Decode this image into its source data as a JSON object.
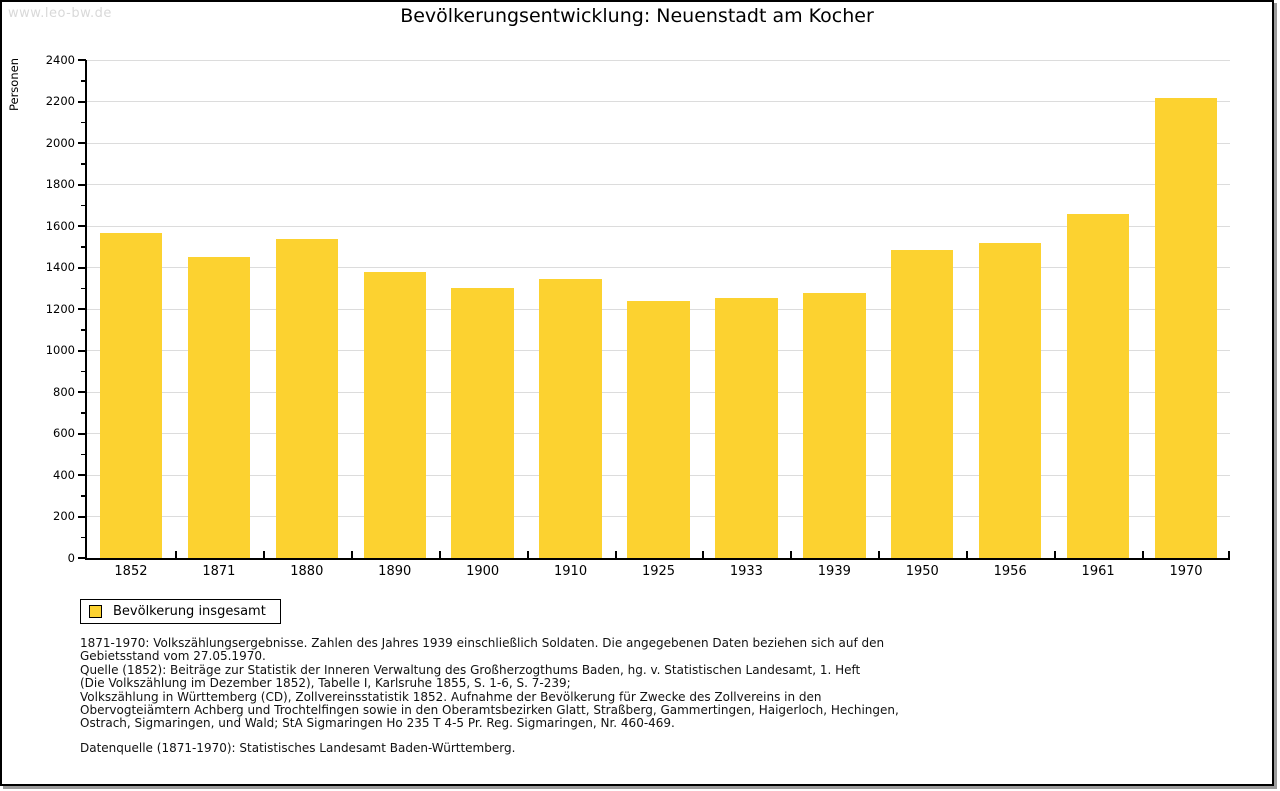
{
  "watermark": "www.leo-bw.de",
  "title": "Bevölkerungsentwicklung: Neuenstadt am Kocher",
  "legend": {
    "label": "Bevölkerung insgesamt"
  },
  "footnotes": [
    "1871-1970: Volkszählungsergebnisse. Zahlen des Jahres 1939 einschließlich Soldaten. Die angegebenen Daten beziehen sich auf den",
    "Gebietsstand vom 27.05.1970.",
    "Quelle (1852): Beiträge zur Statistik der Inneren Verwaltung des Großherzogthums Baden, hg. v. Statistischen Landesamt, 1. Heft",
    "(Die Volkszählung im Dezember 1852), Tabelle I, Karlsruhe 1855, S. 1-6, S. 7-239;",
    "Volkszählung in Württemberg (CD), Zollvereinsstatistik 1852. Aufnahme der Bevölkerung für Zwecke des Zollvereins in den",
    "Obervogteiämtern Achberg und Trochtelfingen sowie in den Oberamtsbezirken Glatt, Straßberg, Gammertingen, Haigerloch, Hechingen,",
    "Ostrach, Sigmaringen, und Wald; StA Sigmaringen Ho 235 T 4-5 Pr. Reg. Sigmaringen, Nr. 460-469."
  ],
  "datasource": "Datenquelle (1871-1970): Statistisches Landesamt Baden-Württemberg.",
  "chart_data": {
    "type": "bar",
    "title": "Bevölkerungsentwicklung: Neuenstadt am Kocher",
    "categories": [
      "1852",
      "1871",
      "1880",
      "1890",
      "1900",
      "1910",
      "1925",
      "1933",
      "1939",
      "1950",
      "1956",
      "1961",
      "1970"
    ],
    "values": [
      1568,
      1452,
      1538,
      1376,
      1301,
      1345,
      1237,
      1251,
      1275,
      1483,
      1516,
      1658,
      2218
    ],
    "series_name": "Bevölkerung insgesamt",
    "xlabel": "",
    "ylabel": "Personen",
    "ylim": [
      0,
      2400
    ],
    "ytick_step": 200,
    "ytick_minor_step": 100,
    "grid": true,
    "legend_position": "bottom-left",
    "bar_color": "#FCD230"
  }
}
